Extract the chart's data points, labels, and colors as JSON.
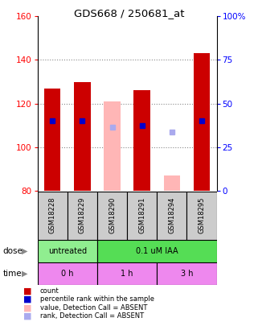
{
  "title": "GDS668 / 250681_at",
  "samples": [
    "GSM18228",
    "GSM18229",
    "GSM18290",
    "GSM18291",
    "GSM18294",
    "GSM18295"
  ],
  "ylim": [
    80,
    160
  ],
  "ylim_right": [
    0,
    100
  ],
  "yticks_left": [
    80,
    100,
    120,
    140,
    160
  ],
  "yticks_right": [
    0,
    25,
    50,
    75,
    100
  ],
  "ytick_labels_right": [
    "0",
    "25",
    "50",
    "75",
    "100%"
  ],
  "bar_bottom": 80,
  "red_bars": {
    "present": [
      0,
      1,
      3,
      5
    ],
    "tops": [
      127,
      130,
      126,
      143
    ],
    "color": "#cc0000"
  },
  "pink_bars": {
    "absent": [
      2,
      4
    ],
    "tops": [
      121,
      87
    ],
    "color": "#ffb6b6"
  },
  "blue_squares": {
    "present": [
      0,
      1,
      3,
      5
    ],
    "values": [
      112,
      112,
      110,
      112
    ],
    "color": "#0000cc"
  },
  "lightblue_squares": {
    "absent": [
      2,
      4
    ],
    "values": [
      109,
      107
    ],
    "color": "#aaaaee"
  },
  "dose_groups": [
    {
      "label": "untreated",
      "cols": [
        0,
        1
      ],
      "color": "#90ee90"
    },
    {
      "label": "0.1 uM IAA",
      "cols": [
        2,
        3,
        4,
        5
      ],
      "color": "#55dd55"
    }
  ],
  "time_groups": [
    {
      "label": "0 h",
      "cols": [
        0,
        1
      ],
      "color": "#ee88ee"
    },
    {
      "label": "1 h",
      "cols": [
        2,
        3
      ],
      "color": "#ee88ee"
    },
    {
      "label": "3 h",
      "cols": [
        4,
        5
      ],
      "color": "#ee88ee"
    }
  ],
  "sample_label_bg": "#cccccc",
  "grid_color": "#888888",
  "legend": [
    {
      "color": "#cc0000",
      "label": "count"
    },
    {
      "color": "#0000cc",
      "label": "percentile rank within the sample"
    },
    {
      "color": "#ffb6b6",
      "label": "value, Detection Call = ABSENT"
    },
    {
      "color": "#aaaaee",
      "label": "rank, Detection Call = ABSENT"
    }
  ]
}
